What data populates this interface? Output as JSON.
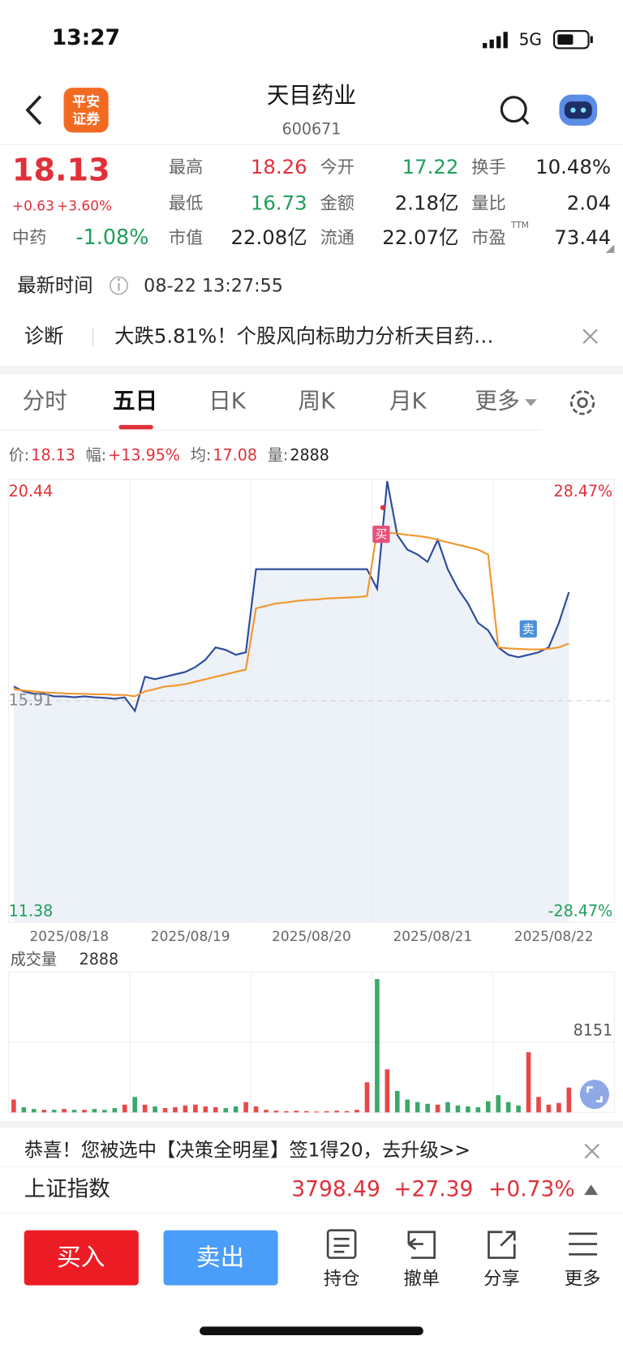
{
  "status_bar": {
    "time": "13:27",
    "network": "5G"
  },
  "header": {
    "logo": [
      "平安",
      "证券"
    ],
    "title": "天目药业",
    "code": "600671"
  },
  "quote": {
    "price": "18.13",
    "change": "+0.63",
    "change_pct": "+3.60%",
    "sector": "中药",
    "sector_change": "-1.08%",
    "fields": [
      {
        "label": "最高",
        "value": "18.26",
        "color": "#e0303a"
      },
      {
        "label": "今开",
        "value": "17.22",
        "color": "#1f9e5a"
      },
      {
        "label": "换手",
        "value": "10.48%",
        "color": "#222"
      },
      {
        "label": "最低",
        "value": "16.73",
        "color": "#1f9e5a"
      },
      {
        "label": "金额",
        "value": "2.18亿",
        "color": "#222"
      },
      {
        "label": "量比",
        "value": "2.04",
        "color": "#222"
      },
      {
        "label": "市值",
        "value": "22.08亿",
        "color": "#222"
      },
      {
        "label": "流通",
        "value": "22.07亿",
        "color": "#222"
      },
      {
        "label": "市盈",
        "value": "73.44",
        "color": "#222"
      }
    ],
    "ttm": "TTM"
  },
  "update": {
    "label": "最新时间",
    "time": "08-22 13:27:55"
  },
  "diagnosis": {
    "label": "诊断",
    "text": "大跌5.81%！个股风向标助力分析天目药…"
  },
  "tabs": [
    "分时",
    "五日",
    "日K",
    "周K",
    "月K",
    "更多"
  ],
  "info_bar": [
    {
      "label": "价:",
      "value": "18.13",
      "color": "#e0303a"
    },
    {
      "label": "幅:",
      "value": "+13.95%",
      "color": "#e0303a"
    },
    {
      "label": "均:",
      "value": "17.08",
      "color": "#e0303a"
    },
    {
      "label": "量:",
      "value": "2888",
      "color": "#222"
    }
  ],
  "chart_data": [
    {
      "type": "line",
      "categories": [
        "2025/08/18",
        "2025/08/19",
        "2025/08/20",
        "2025/08/21",
        "2025/08/22"
      ],
      "ylim": [
        11.38,
        20.44
      ],
      "yticks": [
        11.38,
        15.91,
        20.44
      ],
      "ytick_colors": [
        "#1f9e5a",
        "#888888",
        "#e0303a"
      ],
      "y2lim": [
        -28.47,
        28.47
      ],
      "y2ticks": [
        {
          "value": -28.47,
          "label": "-28.47%"
        },
        {
          "value": 28.47,
          "label": "28.47%"
        }
      ],
      "y2tick_colors": [
        "#1f9e5a",
        "#e0303a"
      ],
      "grid": true,
      "series": [
        {
          "name": "价",
          "color": "#2a4a9a",
          "values": [
            [
              16.2,
              16.1,
              16.05,
              16.05,
              16.0,
              16.0,
              15.98,
              16.0,
              15.98,
              15.97,
              15.95,
              15.98
            ],
            [
              15.7,
              16.4,
              16.35,
              16.4,
              16.45,
              16.5,
              16.6,
              16.75,
              17.0,
              16.95,
              16.85,
              16.9
            ],
            [
              18.6,
              18.6,
              18.6,
              18.6,
              18.6,
              18.6,
              18.6,
              18.6,
              18.6,
              18.6,
              18.6,
              18.6
            ],
            [
              18.2,
              20.4,
              19.3,
              19.0,
              18.9,
              18.75,
              19.2,
              18.6,
              18.2,
              17.9,
              17.5,
              17.35
            ],
            [
              17.0,
              16.85,
              16.8,
              16.85,
              16.9,
              17.0,
              17.5,
              18.13
            ]
          ]
        },
        {
          "name": "均",
          "color": "#f0962e",
          "values": [
            [
              16.15,
              16.12,
              16.1,
              16.08,
              16.07,
              16.06,
              16.05,
              16.05,
              16.04,
              16.04,
              16.03,
              16.03
            ],
            [
              16.0,
              16.1,
              16.15,
              16.2,
              16.22,
              16.25,
              16.3,
              16.35,
              16.4,
              16.45,
              16.5,
              16.55
            ],
            [
              17.8,
              17.85,
              17.9,
              17.92,
              17.95,
              17.97,
              17.98,
              18.0,
              18.01,
              18.02,
              18.03,
              18.05
            ],
            [
              19.4,
              19.35,
              19.33,
              19.3,
              19.28,
              19.25,
              19.2,
              19.15,
              19.1,
              19.05,
              19.0,
              18.9
            ],
            [
              17.0,
              16.98,
              16.97,
              16.96,
              16.96,
              16.97,
              17.0,
              17.08
            ]
          ]
        }
      ],
      "annotations": [
        {
          "text": "买",
          "color": "#e8507a"
        },
        {
          "text": "卖",
          "color": "#4a90d9"
        }
      ]
    },
    {
      "type": "bar",
      "title": "成交量",
      "current_label": "2888",
      "ylim": [
        0,
        16302
      ],
      "yticks": [
        8151
      ],
      "up_color": "#e84848",
      "down_color": "#3aa86a",
      "values": [
        [
          1500,
          600,
          400,
          300,
          300,
          400,
          300,
          300,
          400,
          300,
          500,
          900
        ],
        [
          1800,
          900,
          700,
          500,
          600,
          800,
          900,
          700,
          600,
          500,
          700,
          1200
        ],
        [
          700,
          300,
          200,
          150,
          200,
          150,
          100,
          150,
          200,
          150,
          300,
          3500
        ],
        [
          15500,
          5000,
          2500,
          1500,
          1200,
          1000,
          900,
          1200,
          800,
          700,
          600,
          1300
        ],
        [
          2000,
          1200,
          800,
          7000,
          1800,
          900,
          1100,
          2888
        ]
      ]
    }
  ],
  "banner": "恭喜！您被选中【决策全明星】签1得20，去升级>>",
  "index": {
    "name": "上证指数",
    "value": "3798.49",
    "change": "+27.39",
    "change_pct": "+0.73%"
  },
  "buttons": {
    "buy": "买入",
    "sell": "卖出"
  },
  "toolbar": [
    "持仓",
    "撤单",
    "分享",
    "更多"
  ]
}
